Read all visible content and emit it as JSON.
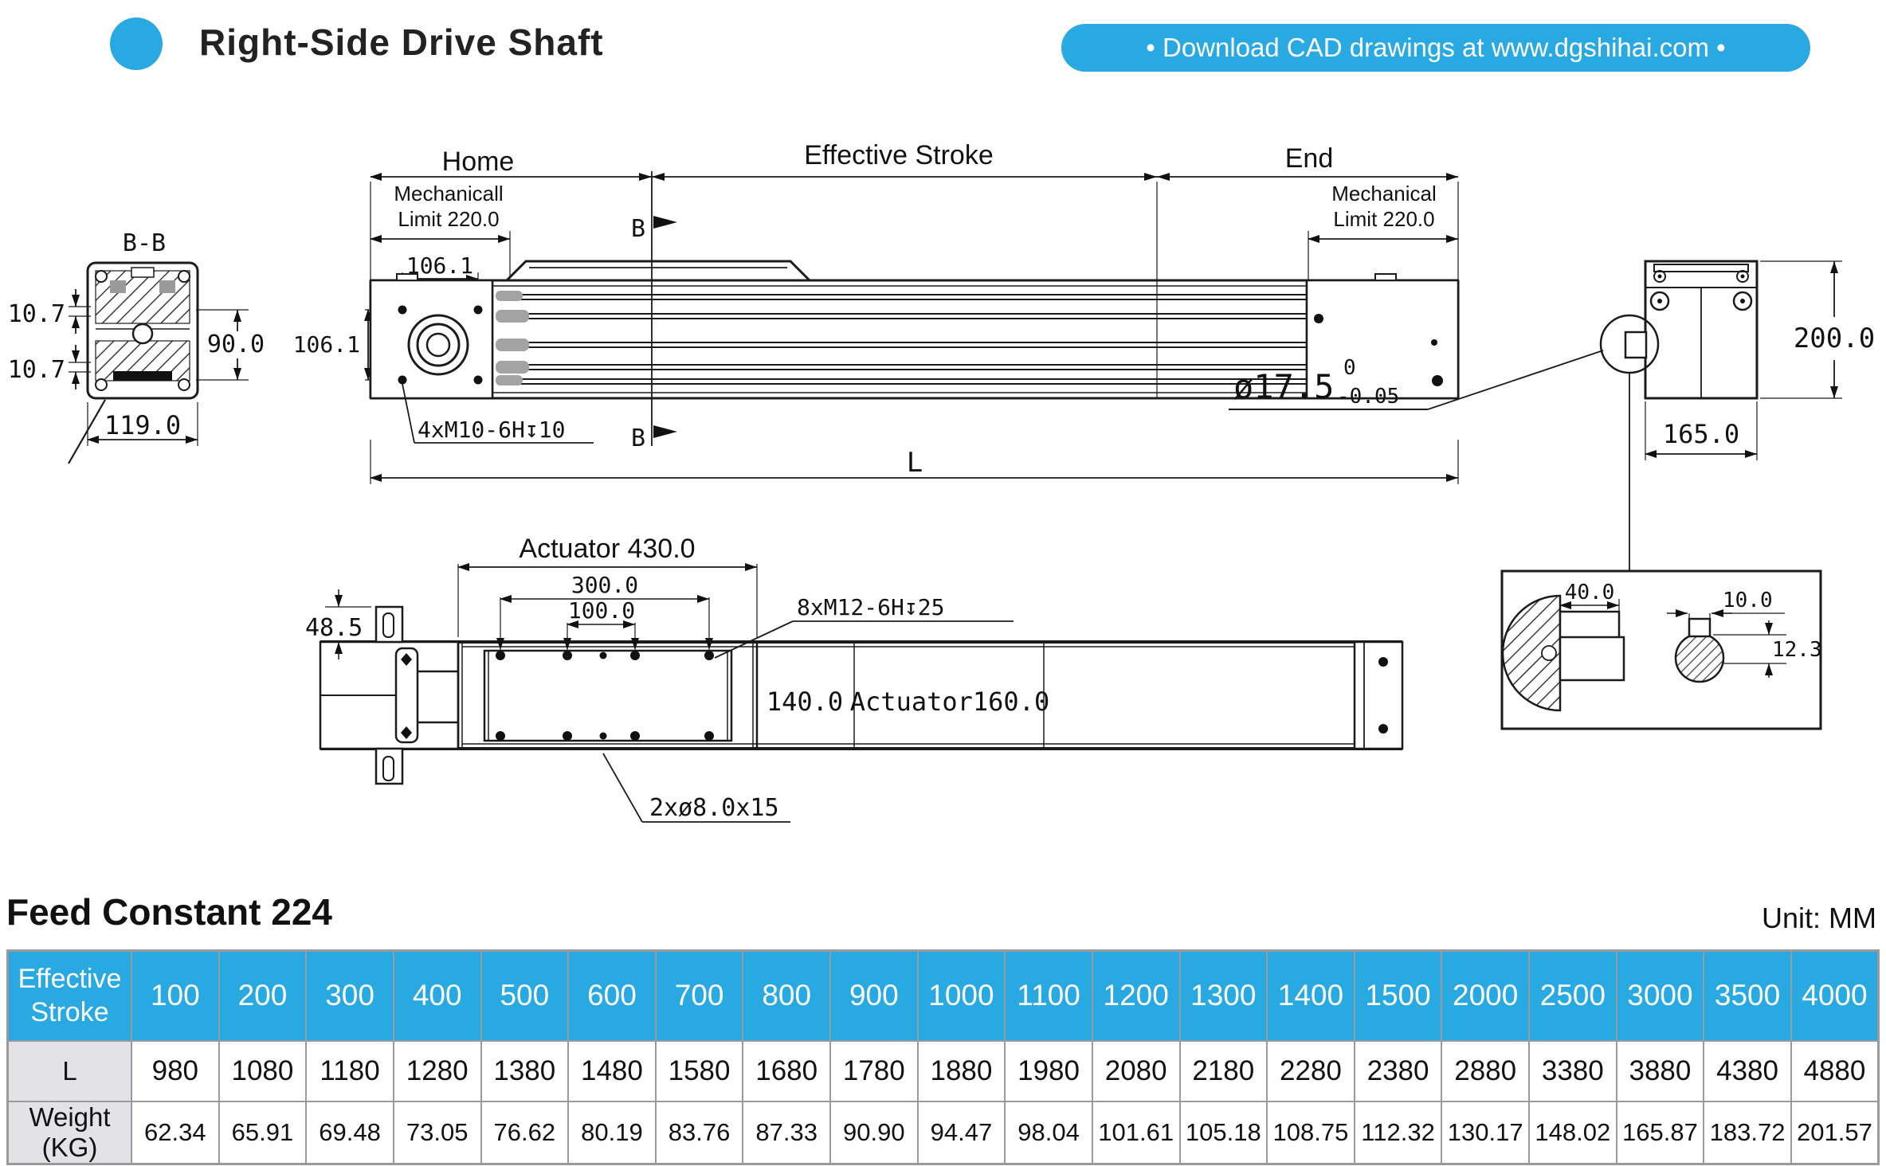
{
  "header": {
    "title": "Right-Side Drive Shaft",
    "banner": "• Download CAD drawings at www.dgshihai.com •",
    "accent_color": "#29a9e1"
  },
  "drawing": {
    "bb": {
      "title": "B-B",
      "d_top_left": "10.7",
      "d_bottom_left": "10.7",
      "d_right": "90.0",
      "d_bottom": "119.0"
    },
    "main": {
      "home": "Home",
      "stroke": "Effective Stroke",
      "end": "End",
      "mech_l1": "Mechanicall",
      "mech_l2": "Limit 220.0",
      "mech_r1": "Mechanical",
      "mech_r2": "Limit 220.0",
      "d106h": "106.1",
      "d106v": "106.1",
      "thread": "4xM10-6H↧10",
      "b_marker": "B",
      "length": "L",
      "shaft": "ø17.5",
      "tol_u": "0",
      "tol_l": "-0.05"
    },
    "endview": {
      "h": "200.0",
      "w": "165.0"
    },
    "detail": {
      "key_len": "40.0",
      "key_wid": "10.0",
      "key_dep": "12.3"
    },
    "bottom": {
      "act": "Actuator 430.0",
      "d300": "300.0",
      "d100": "100.0",
      "d485": "48.5",
      "thread": "8xM12-6H↧25",
      "d140": "140.0",
      "act160": "Actuator160.0",
      "pins": "2xø8.0x15"
    }
  },
  "table_section": {
    "title": "Feed Constant 224",
    "unit": "Unit: MM"
  },
  "table": {
    "corner": "Effective Stroke",
    "l_label": "L",
    "w_label": "Weight (KG)",
    "columns": [
      "100",
      "200",
      "300",
      "400",
      "500",
      "600",
      "700",
      "800",
      "900",
      "1000",
      "1100",
      "1200",
      "1300",
      "1400",
      "1500",
      "2000",
      "2500",
      "3000",
      "3500",
      "4000"
    ],
    "l_values": [
      "980",
      "1080",
      "1180",
      "1280",
      "1380",
      "1480",
      "1580",
      "1680",
      "1780",
      "1880",
      "1980",
      "2080",
      "2180",
      "2280",
      "2380",
      "2880",
      "3380",
      "3880",
      "4380",
      "4880"
    ],
    "weight_values": [
      "62.34",
      "65.91",
      "69.48",
      "73.05",
      "76.62",
      "80.19",
      "83.76",
      "87.33",
      "90.90",
      "94.47",
      "98.04",
      "101.61",
      "105.18",
      "108.75",
      "112.32",
      "130.17",
      "148.02",
      "165.87",
      "183.72",
      "201.57"
    ]
  }
}
